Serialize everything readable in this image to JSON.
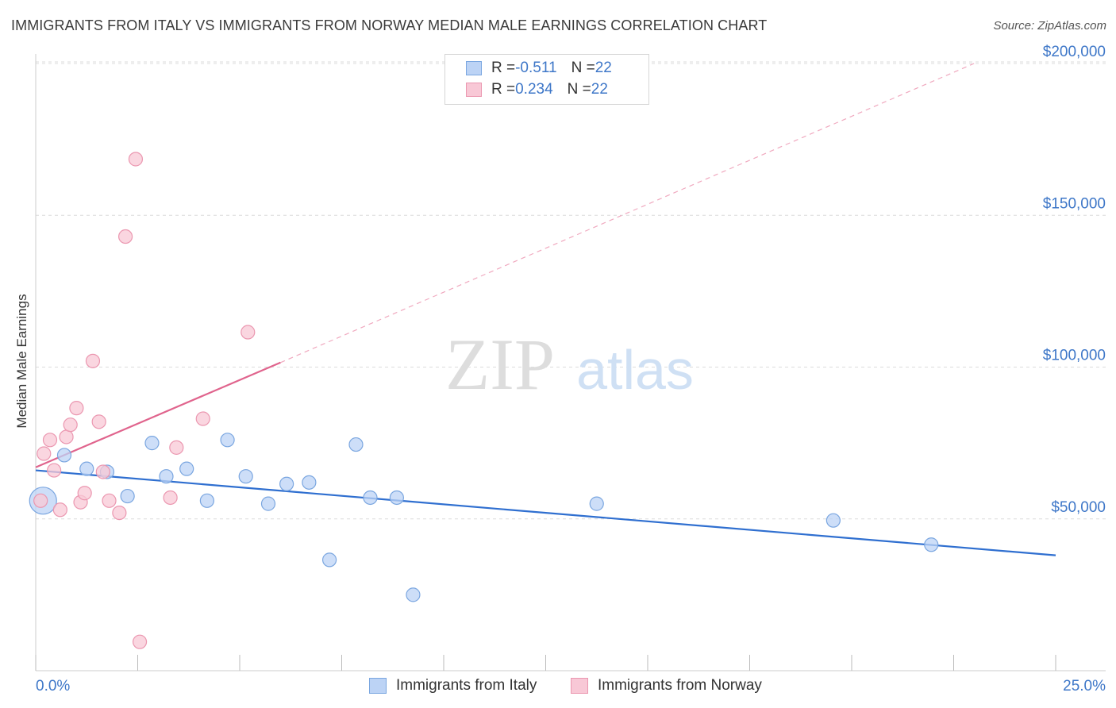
{
  "title": "IMMIGRANTS FROM ITALY VS IMMIGRANTS FROM NORWAY MEDIAN MALE EARNINGS CORRELATION CHART",
  "source": "Source: ZipAtlas.com",
  "watermark": {
    "zip": "ZIP",
    "atlas": "atlas"
  },
  "legend": {
    "italy": {
      "r_label": "R = ",
      "r_value": "-0.511",
      "n_label": "N = ",
      "n_value": "22"
    },
    "norway": {
      "r_label": "R = ",
      "r_value": "0.234",
      "n_label": "N = ",
      "n_value": "22"
    }
  },
  "colors": {
    "italy_fill": "#bcd3f5",
    "italy_stroke": "#7aa6e0",
    "italy_line": "#2f6fd0",
    "norway_fill": "#f8c8d6",
    "norway_stroke": "#eb97b0",
    "norway_line": "#e0648d",
    "tick_text": "#3e77c8",
    "grid": "#dcdcdc"
  },
  "chart_data": {
    "type": "scatter",
    "title": "IMMIGRANTS FROM ITALY VS IMMIGRANTS FROM NORWAY MEDIAN MALE EARNINGS CORRELATION CHART",
    "xlabel": "",
    "ylabel": "Median Male Earnings",
    "xlim": [
      0,
      25
    ],
    "ylim": [
      0,
      205000
    ],
    "x_tick_labels": {
      "left": "0.0%",
      "right": "25.0%"
    },
    "y_ticks": [
      {
        "value": 50000,
        "label": "$50,000"
      },
      {
        "value": 100000,
        "label": "$100,000"
      },
      {
        "value": 150000,
        "label": "$150,000"
      },
      {
        "value": 200000,
        "label": "$200,000"
      }
    ],
    "series": [
      {
        "name": "Immigrants from Italy",
        "key": "italy",
        "points": [
          {
            "x": 0.18,
            "y": 56000,
            "big": true
          },
          {
            "x": 0.7,
            "y": 71000
          },
          {
            "x": 1.25,
            "y": 66500
          },
          {
            "x": 1.75,
            "y": 65500
          },
          {
            "x": 2.25,
            "y": 57500
          },
          {
            "x": 2.85,
            "y": 75000
          },
          {
            "x": 3.2,
            "y": 64000
          },
          {
            "x": 3.7,
            "y": 66500
          },
          {
            "x": 4.2,
            "y": 56000
          },
          {
            "x": 4.7,
            "y": 76000
          },
          {
            "x": 5.15,
            "y": 64000
          },
          {
            "x": 5.7,
            "y": 55000
          },
          {
            "x": 6.15,
            "y": 61500
          },
          {
            "x": 6.7,
            "y": 62000
          },
          {
            "x": 7.2,
            "y": 36500
          },
          {
            "x": 7.85,
            "y": 74500
          },
          {
            "x": 8.2,
            "y": 57000
          },
          {
            "x": 8.85,
            "y": 57000
          },
          {
            "x": 9.25,
            "y": 25000
          },
          {
            "x": 13.75,
            "y": 55000
          },
          {
            "x": 19.55,
            "y": 49500
          },
          {
            "x": 21.95,
            "y": 41500
          }
        ],
        "trend": {
          "x0": 0,
          "y0": 66000,
          "x1": 25,
          "y1": 38000
        }
      },
      {
        "name": "Immigrants from Norway",
        "key": "norway",
        "points": [
          {
            "x": 0.12,
            "y": 56000
          },
          {
            "x": 0.2,
            "y": 71500
          },
          {
            "x": 0.35,
            "y": 76000
          },
          {
            "x": 0.45,
            "y": 66000
          },
          {
            "x": 0.6,
            "y": 53000
          },
          {
            "x": 0.75,
            "y": 77000
          },
          {
            "x": 0.85,
            "y": 81000
          },
          {
            "x": 1.0,
            "y": 86500
          },
          {
            "x": 1.1,
            "y": 55500
          },
          {
            "x": 1.2,
            "y": 58500
          },
          {
            "x": 1.4,
            "y": 102000
          },
          {
            "x": 1.55,
            "y": 82000
          },
          {
            "x": 1.65,
            "y": 65500
          },
          {
            "x": 1.8,
            "y": 56000
          },
          {
            "x": 2.05,
            "y": 52000
          },
          {
            "x": 2.2,
            "y": 143000
          },
          {
            "x": 2.45,
            "y": 168500
          },
          {
            "x": 2.55,
            "y": 9500
          },
          {
            "x": 3.3,
            "y": 57000
          },
          {
            "x": 3.45,
            "y": 73500
          },
          {
            "x": 4.1,
            "y": 83000
          },
          {
            "x": 5.2,
            "y": 111500
          }
        ],
        "trend": {
          "x0": 0,
          "y0": 67000,
          "x1": 6.0,
          "y1": 101500
        },
        "trend_extension": {
          "x0": 6.0,
          "y0": 101500,
          "x1": 23.0,
          "y1": 200000
        }
      }
    ]
  },
  "bottom_legend": {
    "italy_label": "Immigrants from Italy",
    "norway_label": "Immigrants from Norway"
  }
}
